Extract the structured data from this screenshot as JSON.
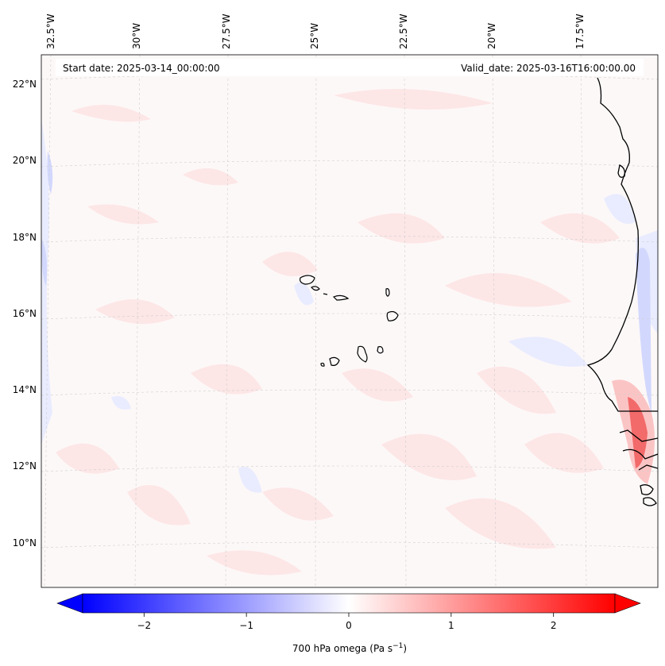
{
  "header": {
    "start_date": "Start date: 2025-03-14_00:00:00",
    "valid_date": "Valid_date: 2025-03-16T16:00:00.00"
  },
  "map": {
    "lon_labels": [
      "32.5°W",
      "30°W",
      "27.5°W",
      "25°W",
      "22.5°W",
      "20°W",
      "17.5°W"
    ],
    "lat_labels": [
      "22°N",
      "20°N",
      "18°N",
      "16°N",
      "14°N",
      "12°N",
      "10°N"
    ],
    "field_colors": {
      "background": "#fdf8f8",
      "weak_positive": "#fde6e6",
      "moderate_positive": "#fbc4c4",
      "strong_positive": "#f26a6a",
      "weak_negative": "#e9ecfe",
      "moderate_negative": "#d2d8fd",
      "coast": "#000000",
      "grid": "#cfcfcf"
    },
    "islands": [
      "cape-verde-santo-antao",
      "cape-verde-sao-vicente",
      "cape-verde-santa-luzia",
      "cape-verde-sao-nicolau",
      "cape-verde-sal",
      "cape-verde-boa-vista",
      "cape-verde-maio",
      "cape-verde-santiago",
      "cape-verde-fogo",
      "cape-verde-brava"
    ]
  },
  "colorbar": {
    "label": "700 hPa omega (Pa s",
    "label_sup": "−1",
    "label_close": ")",
    "ticks": [
      "−2",
      "−1",
      "0",
      "1",
      "2"
    ],
    "tick_values": [
      -2,
      -1,
      0,
      1,
      2
    ],
    "range": [
      -2.6,
      2.6
    ],
    "colors": {
      "min": "#0000ff",
      "mid": "#ffffff",
      "max": "#ff0000"
    }
  }
}
